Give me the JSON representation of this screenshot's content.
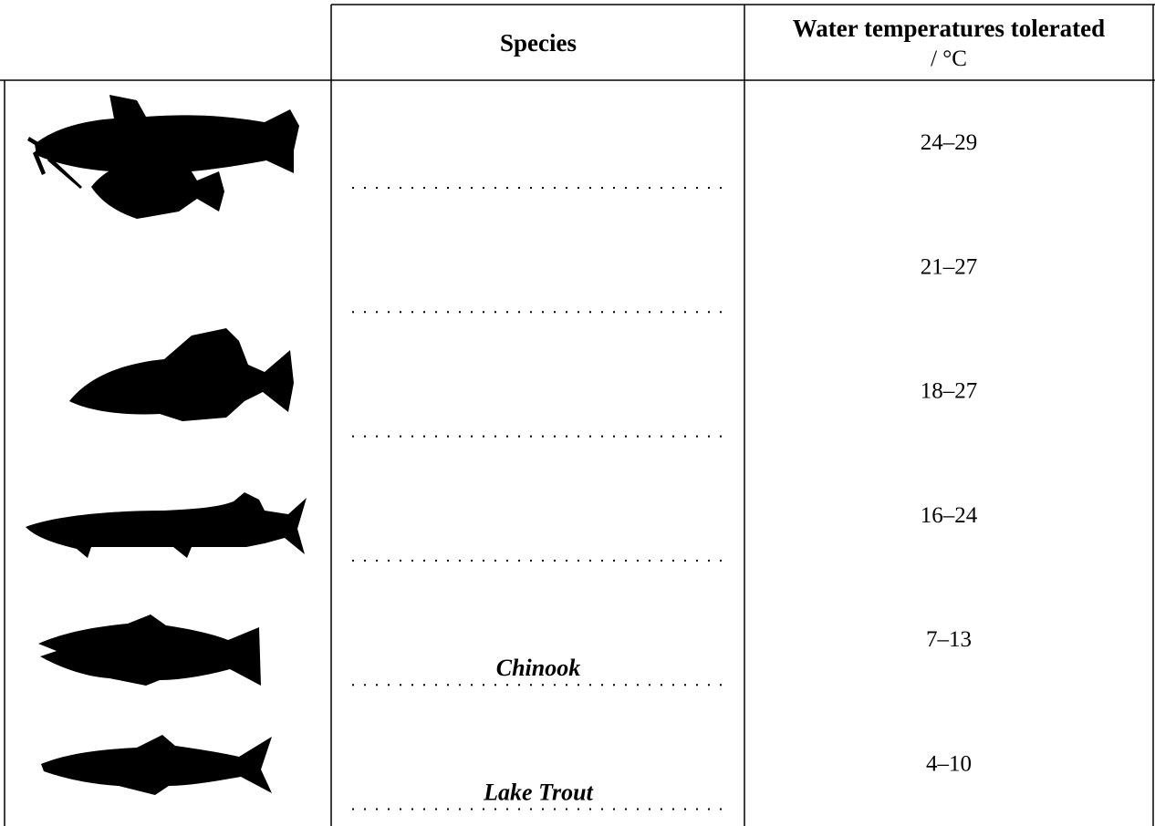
{
  "table": {
    "header": {
      "species": "Species",
      "temperature": "Water temperatures tolerated",
      "unit": "/ °C"
    },
    "rows": [
      {
        "temperature": "24–29"
      },
      {
        "temperature": "21–27"
      },
      {
        "temperature": "18–27"
      },
      {
        "temperature": "16–24"
      },
      {
        "species": "Chinook",
        "temperature": "7–13"
      },
      {
        "species": "Lake Trout",
        "temperature": "4–10"
      }
    ]
  }
}
